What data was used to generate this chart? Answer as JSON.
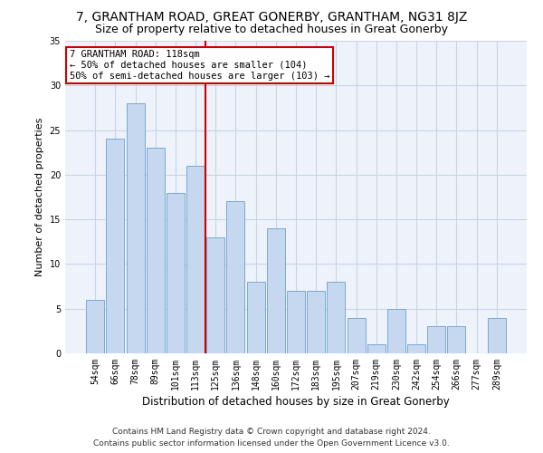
{
  "title": "7, GRANTHAM ROAD, GREAT GONERBY, GRANTHAM, NG31 8JZ",
  "subtitle": "Size of property relative to detached houses in Great Gonerby",
  "xlabel": "Distribution of detached houses by size in Great Gonerby",
  "ylabel": "Number of detached properties",
  "categories": [
    "54sqm",
    "66sqm",
    "78sqm",
    "89sqm",
    "101sqm",
    "113sqm",
    "125sqm",
    "136sqm",
    "148sqm",
    "160sqm",
    "172sqm",
    "183sqm",
    "195sqm",
    "207sqm",
    "219sqm",
    "230sqm",
    "242sqm",
    "254sqm",
    "266sqm",
    "277sqm",
    "289sqm"
  ],
  "values": [
    6,
    24,
    28,
    23,
    18,
    21,
    13,
    17,
    8,
    14,
    7,
    7,
    8,
    4,
    1,
    5,
    1,
    3,
    3,
    0,
    4
  ],
  "bar_color": "#c5d8f0",
  "bar_edgecolor": "#7aaad0",
  "highlight_index": 6,
  "highlight_color": "#cc0000",
  "annotation_line1": "7 GRANTHAM ROAD: 118sqm",
  "annotation_line2": "← 50% of detached houses are smaller (104)",
  "annotation_line3": "50% of semi-detached houses are larger (103) →",
  "annotation_box_edgecolor": "#cc0000",
  "ylim": [
    0,
    35
  ],
  "yticks": [
    0,
    5,
    10,
    15,
    20,
    25,
    30,
    35
  ],
  "footer1": "Contains HM Land Registry data © Crown copyright and database right 2024.",
  "footer2": "Contains public sector information licensed under the Open Government Licence v3.0.",
  "bg_color": "#eef2fb",
  "grid_color": "#c8d4e8",
  "title_fontsize": 10,
  "subtitle_fontsize": 9,
  "ylabel_fontsize": 8,
  "xlabel_fontsize": 8.5,
  "tick_fontsize": 7,
  "footer_fontsize": 6.5,
  "annotation_fontsize": 7.5
}
